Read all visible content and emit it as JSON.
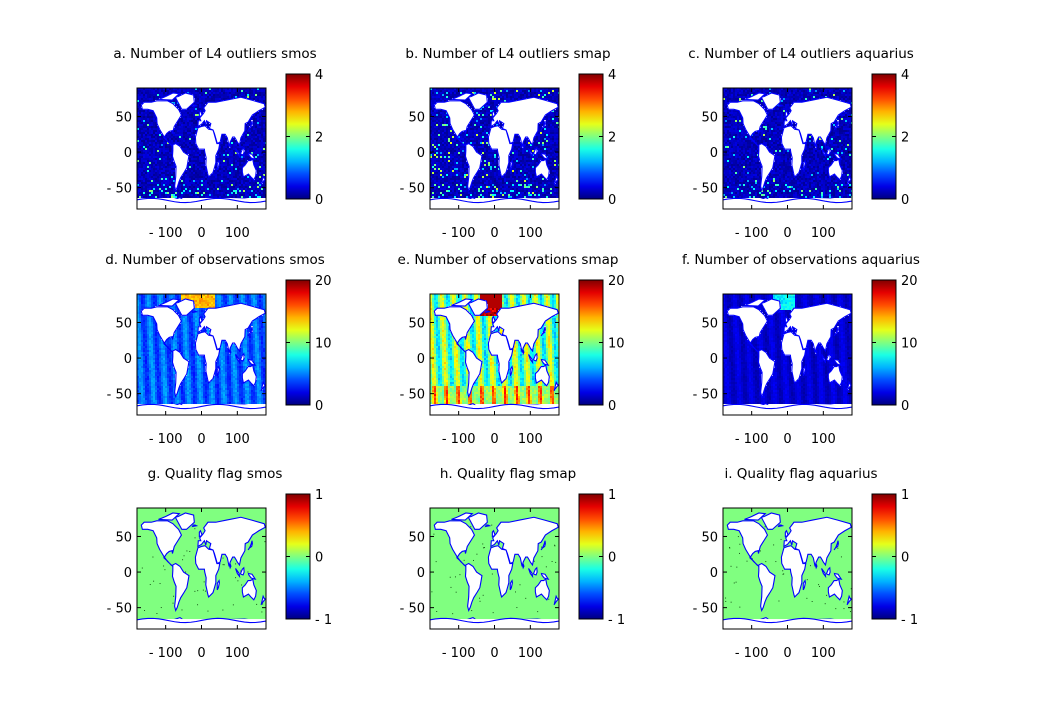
{
  "chart_data": [
    {
      "type": "heatmap",
      "title": "a. Number of L4 outliers smos",
      "field": "outliers",
      "mission": "smos",
      "xticks": [
        -100,
        0,
        100
      ],
      "yticks": [
        50,
        0,
        -50
      ],
      "xlim": [
        -180,
        180
      ],
      "ylim": [
        -80,
        90
      ],
      "colorbar": {
        "range": [
          0,
          4
        ],
        "ticks": [
          0,
          2,
          4
        ],
        "colormap": "jet"
      }
    },
    {
      "type": "heatmap",
      "title": "b. Number of L4 outliers smap",
      "field": "outliers",
      "mission": "smap",
      "xticks": [
        -100,
        0,
        100
      ],
      "yticks": [
        50,
        0,
        -50
      ],
      "xlim": [
        -180,
        180
      ],
      "ylim": [
        -80,
        90
      ],
      "colorbar": {
        "range": [
          0,
          4
        ],
        "ticks": [
          0,
          2,
          4
        ],
        "colormap": "jet"
      }
    },
    {
      "type": "heatmap",
      "title": "c. Number of L4 outliers aquarius",
      "field": "outliers",
      "mission": "aquarius",
      "xticks": [
        -100,
        0,
        100
      ],
      "yticks": [
        50,
        0,
        -50
      ],
      "xlim": [
        -180,
        180
      ],
      "ylim": [
        -80,
        90
      ],
      "colorbar": {
        "range": [
          0,
          4
        ],
        "ticks": [
          0,
          2,
          4
        ],
        "colormap": "jet"
      }
    },
    {
      "type": "heatmap",
      "title": "d. Number of observations smos",
      "field": "observations",
      "mission": "smos",
      "xticks": [
        -100,
        0,
        100
      ],
      "yticks": [
        50,
        0,
        -50
      ],
      "xlim": [
        -180,
        180
      ],
      "ylim": [
        -80,
        90
      ],
      "colorbar": {
        "range": [
          0,
          20
        ],
        "ticks": [
          0,
          10,
          20
        ],
        "colormap": "jet"
      }
    },
    {
      "type": "heatmap",
      "title": "e. Number of observations smap",
      "field": "observations",
      "mission": "smap",
      "xticks": [
        -100,
        0,
        100
      ],
      "yticks": [
        50,
        0,
        -50
      ],
      "xlim": [
        -180,
        180
      ],
      "ylim": [
        -80,
        90
      ],
      "colorbar": {
        "range": [
          0,
          20
        ],
        "ticks": [
          0,
          10,
          20
        ],
        "colormap": "jet"
      }
    },
    {
      "type": "heatmap",
      "title": "f. Number of observations aquarius",
      "field": "observations",
      "mission": "aquarius",
      "xticks": [
        -100,
        0,
        100
      ],
      "yticks": [
        50,
        0,
        -50
      ],
      "xlim": [
        -180,
        180
      ],
      "ylim": [
        -80,
        90
      ],
      "colorbar": {
        "range": [
          0,
          20
        ],
        "ticks": [
          0,
          10,
          20
        ],
        "colormap": "jet"
      }
    },
    {
      "type": "heatmap",
      "title": "g. Quality flag smos",
      "field": "quality",
      "mission": "smos",
      "xticks": [
        -100,
        0,
        100
      ],
      "yticks": [
        50,
        0,
        -50
      ],
      "xlim": [
        -180,
        180
      ],
      "ylim": [
        -80,
        90
      ],
      "colorbar": {
        "range": [
          -1,
          1
        ],
        "ticks": [
          -1,
          0,
          1
        ],
        "tick_labels": [
          "- 1",
          "0",
          "1"
        ],
        "colormap": "jet"
      }
    },
    {
      "type": "heatmap",
      "title": "h. Quality flag smap",
      "field": "quality",
      "mission": "smap",
      "xticks": [
        -100,
        0,
        100
      ],
      "yticks": [
        50,
        0,
        -50
      ],
      "xlim": [
        -180,
        180
      ],
      "ylim": [
        -80,
        90
      ],
      "colorbar": {
        "range": [
          -1,
          1
        ],
        "ticks": [
          -1,
          0,
          1
        ],
        "tick_labels": [
          "- 1",
          "0",
          "1"
        ],
        "colormap": "jet"
      }
    },
    {
      "type": "heatmap",
      "title": "i. Quality flag aquarius",
      "field": "quality",
      "mission": "aquarius",
      "xticks": [
        -100,
        0,
        100
      ],
      "yticks": [
        50,
        0,
        -50
      ],
      "xlim": [
        -180,
        180
      ],
      "ylim": [
        -80,
        90
      ],
      "colorbar": {
        "range": [
          -1,
          1
        ],
        "ticks": [
          -1,
          0,
          1
        ],
        "tick_labels": [
          "- 1",
          "0",
          "1"
        ],
        "colormap": "jet"
      }
    }
  ],
  "colors": {
    "coastline": "#0000ff",
    "land": "#ffffff",
    "axis": "#000000",
    "quality_ocean": "#80ff80"
  }
}
